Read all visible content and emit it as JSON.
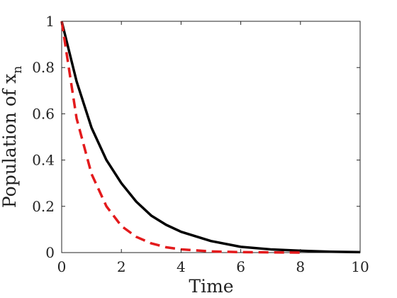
{
  "chart_data": {
    "type": "line",
    "xlabel": "Time",
    "ylabel": "Population of x",
    "ylabel_subscript": "n",
    "xlim": [
      0,
      10
    ],
    "ylim": [
      0,
      1
    ],
    "xticks": [
      0,
      2,
      4,
      6,
      8,
      10
    ],
    "yticks": [
      0,
      0.2,
      0.4,
      0.6,
      0.8,
      1
    ],
    "xtick_labels": [
      "0",
      "2",
      "4",
      "6",
      "8",
      "10"
    ],
    "ytick_labels": [
      "0",
      "0.2",
      "0.4",
      "0.6",
      "0.8",
      "1"
    ],
    "grid": false,
    "series": [
      {
        "style": "solid",
        "color": "#000000",
        "x": [
          0,
          0.5,
          1,
          1.5,
          2,
          2.5,
          3,
          3.5,
          4,
          5,
          6,
          7,
          8,
          9,
          10
        ],
        "y": [
          1,
          0.74,
          0.54,
          0.4,
          0.3,
          0.22,
          0.16,
          0.12,
          0.09,
          0.05,
          0.025,
          0.014,
          0.008,
          0.004,
          0.002
        ]
      },
      {
        "style": "dashed",
        "color": "#e31a1c",
        "x": [
          0,
          0.5,
          1,
          1.5,
          2,
          2.5,
          3,
          3.5,
          4,
          5,
          6,
          7,
          8
        ],
        "y": [
          1,
          0.58,
          0.34,
          0.2,
          0.115,
          0.068,
          0.04,
          0.023,
          0.014,
          0.005,
          0.002,
          0.001,
          0.0
        ]
      }
    ]
  }
}
